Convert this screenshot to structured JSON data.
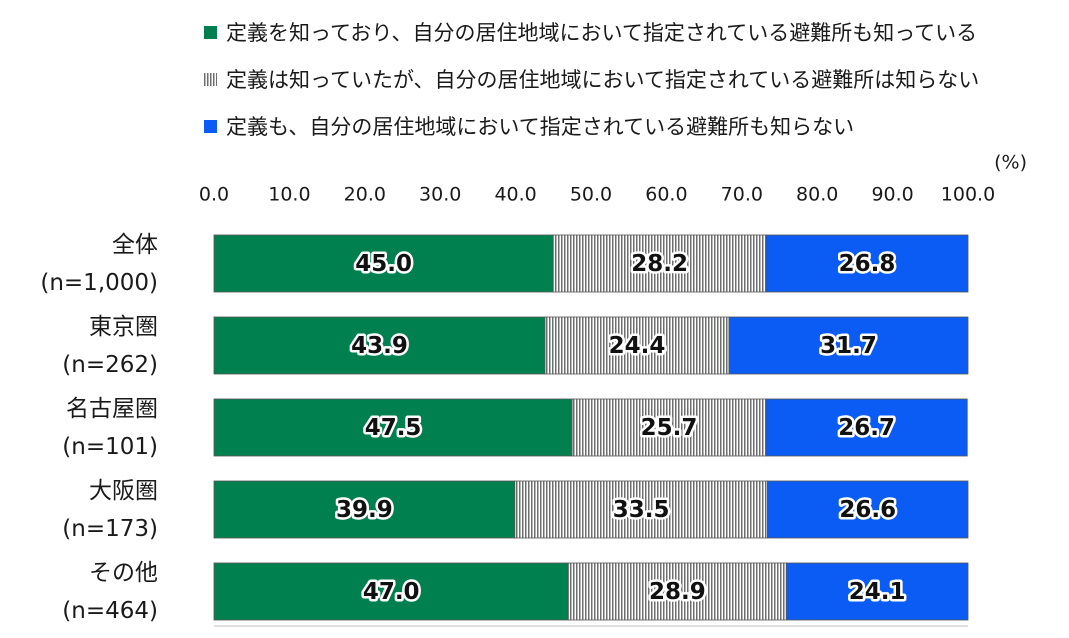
{
  "chart_data": {
    "type": "bar",
    "orientation": "horizontal",
    "stacked": true,
    "unit_label": "(%)",
    "xlim": [
      0,
      100
    ],
    "ticks": [
      "0.0",
      "10.0",
      "20.0",
      "30.0",
      "40.0",
      "50.0",
      "60.0",
      "70.0",
      "80.0",
      "90.0",
      "100.0"
    ],
    "categories": [
      {
        "name": "全体",
        "n": "(n=1,000)"
      },
      {
        "name": "東京圏",
        "n": "(n=262)"
      },
      {
        "name": "名古屋圏",
        "n": "(n=101)"
      },
      {
        "name": "大阪圏",
        "n": "(n=173)"
      },
      {
        "name": "その他",
        "n": "(n=464)"
      }
    ],
    "series": [
      {
        "name": "定義を知っており、自分の居住地域において指定されている避難所も知っている",
        "color": "#00804f",
        "pattern": "solid",
        "values": [
          45.0,
          43.9,
          47.5,
          39.9,
          47.0
        ],
        "labels": [
          "45.0",
          "43.9",
          "47.5",
          "39.9",
          "47.0"
        ]
      },
      {
        "name": "定義は知っていたが、自分の居住地域において指定されている避難所は知らない",
        "color": "#808080",
        "pattern": "vertical-stripes",
        "values": [
          28.2,
          24.4,
          25.7,
          33.5,
          28.9
        ],
        "labels": [
          "28.2",
          "24.4",
          "25.7",
          "33.5",
          "28.9"
        ]
      },
      {
        "name": "定義も、自分の居住地域において指定されている避難所も知らない",
        "color": "#0a5cf5",
        "pattern": "solid",
        "values": [
          26.8,
          31.7,
          26.7,
          26.6,
          24.1
        ],
        "labels": [
          "26.8",
          "31.7",
          "26.7",
          "26.6",
          "24.1"
        ]
      }
    ],
    "legend_position": "top",
    "grid": false
  }
}
